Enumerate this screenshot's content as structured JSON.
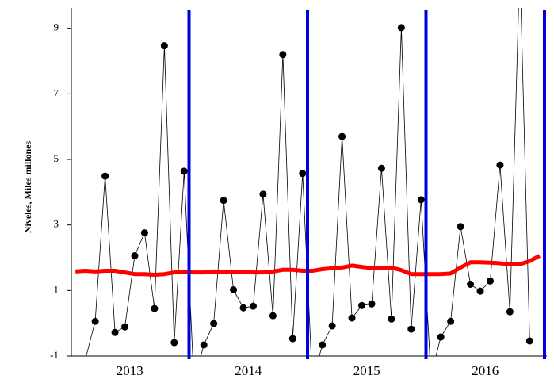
{
  "chart_data": {
    "type": "line",
    "y_label": "Niveles, Miles millones",
    "categories": [
      "2013",
      "2014",
      "2015",
      "2016"
    ],
    "series": [
      {
        "color": "#000000",
        "markers": true,
        "values": [
          [
            null,
            -1.1,
            0.06,
            4.49,
            -0.28,
            -0.11,
            2.06,
            2.76,
            0.45,
            8.47,
            -0.59,
            4.64
          ],
          [
            -1.8,
            -0.66,
            -0.01,
            3.75,
            1.02,
            0.47,
            0.52,
            3.94,
            0.23,
            8.2,
            -0.47,
            4.57
          ],
          [
            -1.8,
            -0.66,
            -0.08,
            5.7,
            0.16,
            0.54,
            0.59,
            4.73,
            0.13,
            9.02,
            -0.18,
            3.77
          ],
          [
            -1.6,
            -0.42,
            0.06,
            2.95,
            1.19,
            0.98,
            1.29,
            4.83,
            0.35,
            11,
            -0.54,
            null
          ]
        ]
      },
      {
        "color": "#ff0000",
        "markers": false,
        "values": [
          [
            1.58,
            1.6,
            1.58,
            1.6,
            1.6,
            1.55,
            1.5,
            1.5,
            1.48,
            1.5,
            1.55,
            1.58
          ],
          [
            1.55,
            1.55,
            1.58,
            1.57,
            1.56,
            1.57,
            1.55,
            1.55,
            1.58,
            1.63,
            1.63,
            1.6
          ],
          [
            1.6,
            1.65,
            1.68,
            1.7,
            1.76,
            1.72,
            1.68,
            1.69,
            1.7,
            1.62,
            1.5,
            1.5
          ],
          [
            1.5,
            1.5,
            1.52,
            1.7,
            1.86,
            1.86,
            1.85,
            1.83,
            1.8,
            1.8,
            1.9,
            2.06
          ]
        ]
      }
    ],
    "ylim": [
      -1,
      9.55
    ],
    "yticks": [
      -1,
      1,
      3,
      5,
      7,
      9
    ],
    "separator_color": "#0000dd"
  }
}
